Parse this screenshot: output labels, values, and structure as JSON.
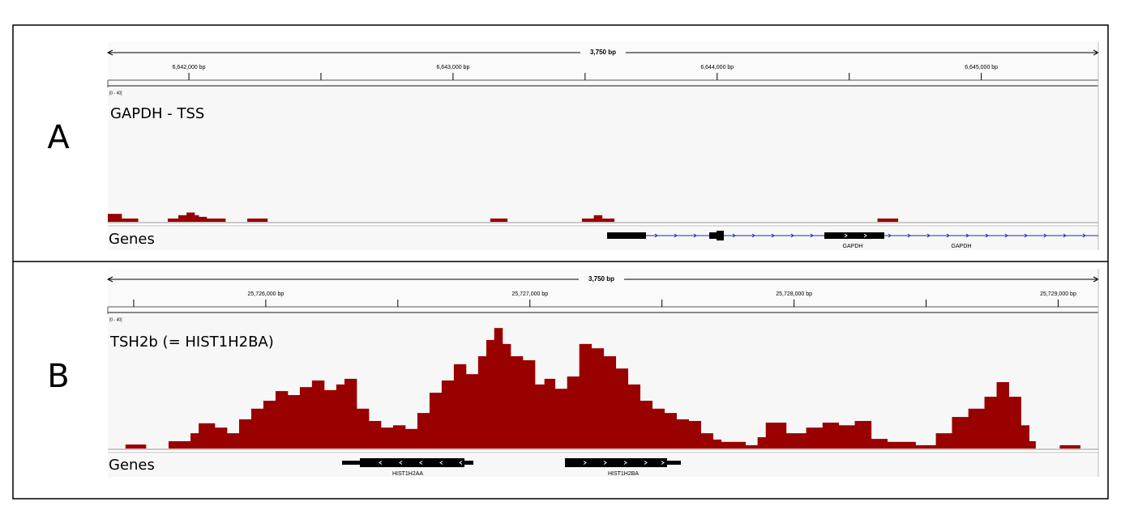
{
  "chart_data": [
    {
      "type": "histogram",
      "panel_label": "A",
      "title": "GAPDH - TSS",
      "span_label": "3,750 bp",
      "range_label": "[0 - 40]",
      "xlim": [
        6641693,
        6645443
      ],
      "xticks": [
        {
          "value": 6642000,
          "label": "6,642,000 bp"
        },
        {
          "value": 6643000,
          "label": "6,643,000 bp"
        },
        {
          "value": 6644000,
          "label": "6,644,000 bp"
        },
        {
          "value": 6645000,
          "label": "6,645,000 bp"
        }
      ],
      "minor_ticks": [
        6642500,
        6643500,
        6644500
      ],
      "ylim": [
        0,
        40
      ],
      "color": "#990000",
      "bins": [
        6641693,
        6641745,
        6641807,
        6641920,
        6641960,
        6641991,
        6642021,
        6642037,
        6642067,
        6642138,
        6642221,
        6642297,
        6643141,
        6643205,
        6643488,
        6643533,
        6643564,
        6643610,
        6644607,
        6644684
      ],
      "values": [
        2.4,
        1,
        0,
        1,
        2,
        2.8,
        2,
        1.5,
        1,
        0,
        1,
        0,
        1,
        0,
        1,
        2,
        1,
        0,
        1
      ],
      "genes_label": "Genes",
      "gene_labels": [
        "GAPDH",
        "GAPDH"
      ]
    },
    {
      "type": "histogram",
      "panel_label": "B",
      "title": "TSH2b (= HIST1H2BA)",
      "span_label": "3,750 bp",
      "range_label": "[0 - 40]",
      "xlim": [
        25725402,
        25729152
      ],
      "xticks": [
        {
          "value": 25726000,
          "label": "25,726,000 bp"
        },
        {
          "value": 25727000,
          "label": "25,727,000 bp"
        },
        {
          "value": 25728000,
          "label": "25,728,000 bp"
        },
        {
          "value": 25729000,
          "label": "25,729,000 bp"
        }
      ],
      "minor_ticks": [
        25725500,
        25726500,
        25727500,
        25728500
      ],
      "ylim": [
        0,
        40
      ],
      "color": "#990000",
      "bins": [
        25725469,
        25725546,
        25725632,
        25725715,
        25725746,
        25725807,
        25725853,
        25725899,
        25725945,
        25725991,
        25726037,
        25726083,
        25726129,
        25726175,
        25726221,
        25726267,
        25726298,
        25726344,
        25726390,
        25726436,
        25726482,
        25726528,
        25726574,
        25726620,
        25726666,
        25726712,
        25726758,
        25726804,
        25726835,
        25726865,
        25726896,
        25726927,
        25726973,
        25727019,
        25727055,
        25727095,
        25727141,
        25727187,
        25727233,
        25727279,
        25727325,
        25727371,
        25727417,
        25727463,
        25727509,
        25727555,
        25727601,
        25727647,
        25727693,
        25727724,
        25727816,
        25727862,
        25727893,
        25727970,
        25728046,
        25728108,
        25728169,
        25728230,
        25728292,
        25728353,
        25728460,
        25728537,
        25728598,
        25728660,
        25728721,
        25728767,
        25728813,
        25728859,
        25728890,
        25728914,
        25729006,
        25729083
      ],
      "values": [
        1.2,
        0,
        2.2,
        4.6,
        7.6,
        6.3,
        4.6,
        8.8,
        12,
        14.4,
        17.3,
        16.1,
        18.5,
        20.5,
        17.6,
        19.3,
        21,
        12,
        8.3,
        6.3,
        7,
        5.9,
        10.7,
        16.8,
        20.5,
        25.4,
        22.4,
        27.8,
        32.7,
        36.3,
        31.5,
        27.8,
        26.6,
        19.3,
        21,
        18,
        21.7,
        31.5,
        30.2,
        27.8,
        24.1,
        19.3,
        14.4,
        12,
        10.7,
        8.8,
        8.3,
        4.6,
        2.7,
        2,
        1,
        3.4,
        7.8,
        4.6,
        6.3,
        7.8,
        7,
        8.3,
        2.9,
        2,
        1,
        4.6,
        9.5,
        12,
        15.6,
        20,
        15.6,
        7,
        2.2,
        0,
        1
      ],
      "genes_label": "Genes",
      "gene_labels": [
        "HIST1H2AA",
        "HIST1H2BA"
      ]
    }
  ]
}
